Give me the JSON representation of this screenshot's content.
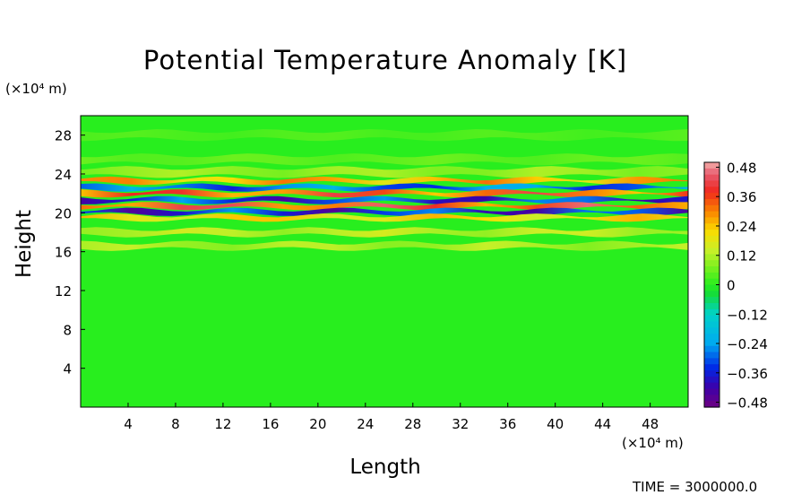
{
  "chart_data": {
    "type": "heatmap",
    "title": "Potential Temperature Anomaly [K]",
    "xlabel": "Length",
    "ylabel": "Height",
    "x_unit": "(×10⁴ m)",
    "y_unit": "(×10⁴ m)",
    "x_ticks": [
      4,
      8,
      12,
      16,
      20,
      24,
      28,
      32,
      36,
      40,
      44,
      48
    ],
    "y_ticks": [
      4,
      8,
      12,
      16,
      20,
      24,
      28
    ],
    "xlim": [
      0,
      51.2
    ],
    "ylim": [
      0,
      30
    ],
    "colorbar": {
      "levels": [
        0.48,
        0.36,
        0.24,
        0.12,
        0,
        -0.12,
        -0.24,
        -0.36,
        -0.48
      ],
      "range": [
        -0.5,
        0.5
      ]
    },
    "background_value": 0.0,
    "bands": [
      {
        "y": 28.0,
        "value": 0.04
      },
      {
        "y": 25.5,
        "value": 0.06
      },
      {
        "y": 24.2,
        "value": 0.12
      },
      {
        "y": 23.3,
        "value": 0.32
      },
      {
        "y": 22.6,
        "value": -0.36
      },
      {
        "y": 22.0,
        "value": 0.42
      },
      {
        "y": 21.3,
        "value": -0.44
      },
      {
        "y": 20.7,
        "value": 0.46
      },
      {
        "y": 20.1,
        "value": -0.46
      },
      {
        "y": 19.5,
        "value": 0.26
      },
      {
        "y": 18.0,
        "value": 0.16
      },
      {
        "y": 16.6,
        "value": 0.14
      }
    ],
    "time_label": "TIME = 3000000.0"
  }
}
